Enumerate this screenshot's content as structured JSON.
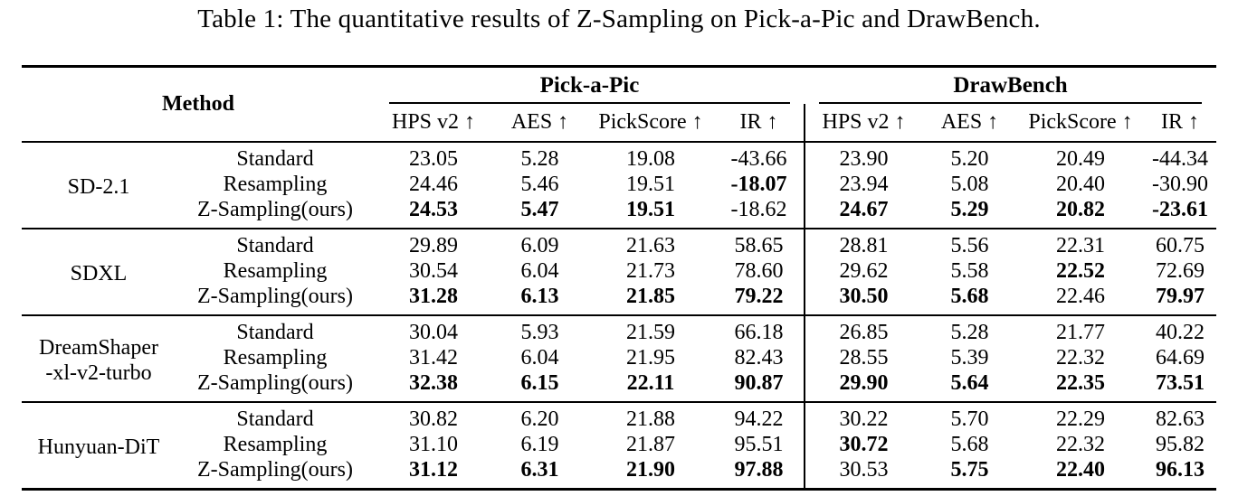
{
  "title": "Table 1: The quantitative results of Z-Sampling on Pick-a-Pic and DrawBench.",
  "table": {
    "method_header": "Method",
    "benchmark_headers": [
      "Pick-a-Pic",
      "DrawBench"
    ],
    "metric_headers": [
      "HPS v2 ↑",
      "AES ↑",
      "PickScore ↑",
      "IR ↑"
    ],
    "groups": [
      {
        "model": "SD-2.1",
        "rows": [
          {
            "variant": "Standard",
            "pap": [
              "23.05",
              "5.28",
              "19.08",
              "-43.66"
            ],
            "pap_bold": [
              false,
              false,
              false,
              false
            ],
            "db": [
              "23.90",
              "5.20",
              "20.49",
              "-44.34"
            ],
            "db_bold": [
              false,
              false,
              false,
              false
            ]
          },
          {
            "variant": "Resampling",
            "pap": [
              "24.46",
              "5.46",
              "19.51",
              "-18.07"
            ],
            "pap_bold": [
              false,
              false,
              false,
              true
            ],
            "db": [
              "23.94",
              "5.08",
              "20.40",
              "-30.90"
            ],
            "db_bold": [
              false,
              false,
              false,
              false
            ]
          },
          {
            "variant": "Z-Sampling(ours)",
            "pap": [
              "24.53",
              "5.47",
              "19.51",
              "-18.62"
            ],
            "pap_bold": [
              true,
              true,
              true,
              false
            ],
            "db": [
              "24.67",
              "5.29",
              "20.82",
              "-23.61"
            ],
            "db_bold": [
              true,
              true,
              true,
              true
            ]
          }
        ]
      },
      {
        "model": "SDXL",
        "rows": [
          {
            "variant": "Standard",
            "pap": [
              "29.89",
              "6.09",
              "21.63",
              "58.65"
            ],
            "pap_bold": [
              false,
              false,
              false,
              false
            ],
            "db": [
              "28.81",
              "5.56",
              "22.31",
              "60.75"
            ],
            "db_bold": [
              false,
              false,
              false,
              false
            ]
          },
          {
            "variant": "Resampling",
            "pap": [
              "30.54",
              "6.04",
              "21.73",
              "78.60"
            ],
            "pap_bold": [
              false,
              false,
              false,
              false
            ],
            "db": [
              "29.62",
              "5.58",
              "22.52",
              "72.69"
            ],
            "db_bold": [
              false,
              false,
              true,
              false
            ]
          },
          {
            "variant": "Z-Sampling(ours)",
            "pap": [
              "31.28",
              "6.13",
              "21.85",
              "79.22"
            ],
            "pap_bold": [
              true,
              true,
              true,
              true
            ],
            "db": [
              "30.50",
              "5.68",
              "22.46",
              "79.97"
            ],
            "db_bold": [
              true,
              true,
              false,
              true
            ]
          }
        ]
      },
      {
        "model": "DreamShaper\n-xl-v2-turbo",
        "rows": [
          {
            "variant": "Standard",
            "pap": [
              "30.04",
              "5.93",
              "21.59",
              "66.18"
            ],
            "pap_bold": [
              false,
              false,
              false,
              false
            ],
            "db": [
              "26.85",
              "5.28",
              "21.77",
              "40.22"
            ],
            "db_bold": [
              false,
              false,
              false,
              false
            ]
          },
          {
            "variant": "Resampling",
            "pap": [
              "31.42",
              "6.04",
              "21.95",
              "82.43"
            ],
            "pap_bold": [
              false,
              false,
              false,
              false
            ],
            "db": [
              "28.55",
              "5.39",
              "22.32",
              "64.69"
            ],
            "db_bold": [
              false,
              false,
              false,
              false
            ]
          },
          {
            "variant": "Z-Sampling(ours)",
            "pap": [
              "32.38",
              "6.15",
              "22.11",
              "90.87"
            ],
            "pap_bold": [
              true,
              true,
              true,
              true
            ],
            "db": [
              "29.90",
              "5.64",
              "22.35",
              "73.51"
            ],
            "db_bold": [
              true,
              true,
              true,
              true
            ]
          }
        ]
      },
      {
        "model": "Hunyuan-DiT",
        "rows": [
          {
            "variant": "Standard",
            "pap": [
              "30.82",
              "6.20",
              "21.88",
              "94.22"
            ],
            "pap_bold": [
              false,
              false,
              false,
              false
            ],
            "db": [
              "30.22",
              "5.70",
              "22.29",
              "82.63"
            ],
            "db_bold": [
              false,
              false,
              false,
              false
            ]
          },
          {
            "variant": "Resampling",
            "pap": [
              "31.10",
              "6.19",
              "21.87",
              "95.51"
            ],
            "pap_bold": [
              false,
              false,
              false,
              false
            ],
            "db": [
              "30.72",
              "5.68",
              "22.32",
              "95.82"
            ],
            "db_bold": [
              true,
              false,
              false,
              false
            ]
          },
          {
            "variant": "Z-Sampling(ours)",
            "pap": [
              "31.12",
              "6.31",
              "21.90",
              "97.88"
            ],
            "pap_bold": [
              true,
              true,
              true,
              true
            ],
            "db": [
              "30.53",
              "5.75",
              "22.40",
              "96.13"
            ],
            "db_bold": [
              false,
              true,
              true,
              true
            ]
          }
        ]
      }
    ]
  }
}
